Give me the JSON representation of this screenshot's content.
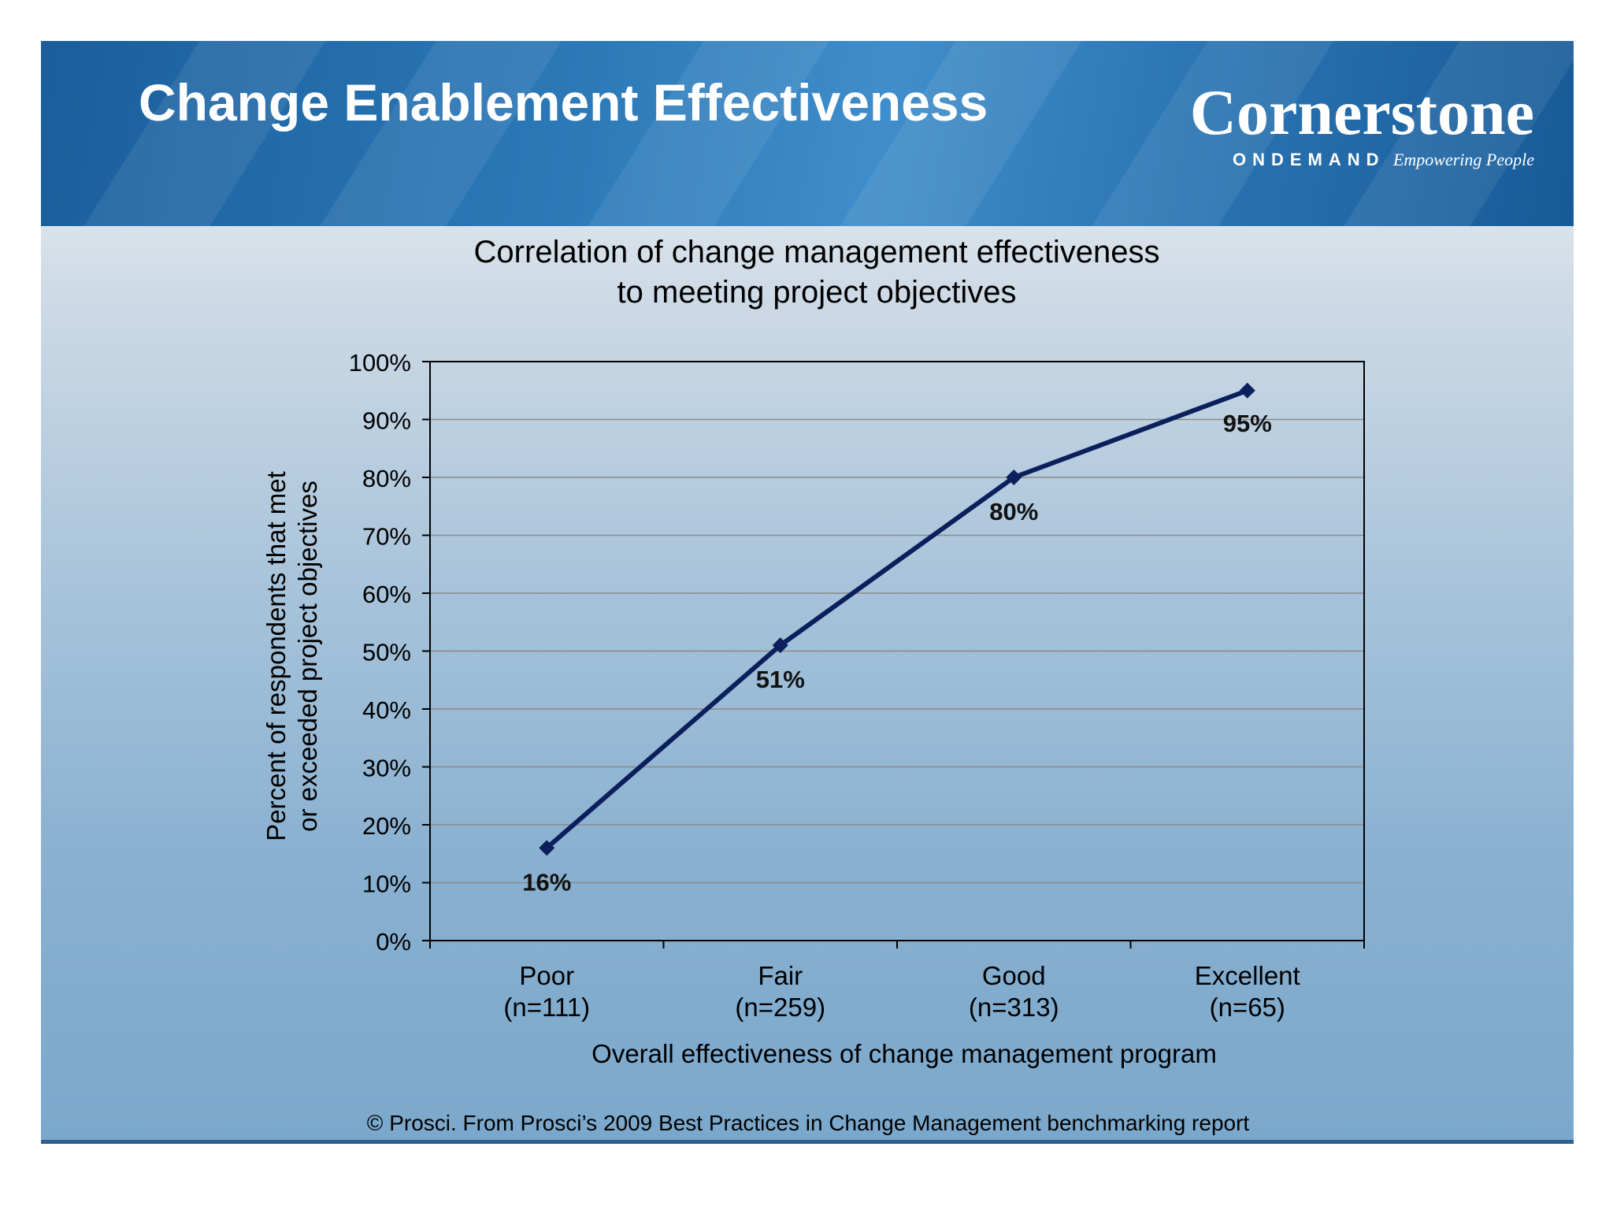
{
  "slide": {
    "title": "Change Enablement Effectiveness",
    "logo_name": "Cornerstone",
    "logo_ondemand": "ONDEMAND",
    "logo_tagline": "Empowering People",
    "footer": "© Prosci. From Prosci’s 2009 Best Practices in Change Management benchmarking report"
  },
  "colors": {
    "line": "#0b1f5c",
    "header": "#2c79b8",
    "grid": "#8a8a8a"
  },
  "chart_data": {
    "type": "line",
    "title_lines": [
      "Correlation of change management effectiveness",
      "to meeting project objectives"
    ],
    "categories": [
      [
        "Poor",
        "(n=111)"
      ],
      [
        "Fair",
        "(n=259)"
      ],
      [
        "Good",
        "(n=313)"
      ],
      [
        "Excellent",
        "(n=65)"
      ]
    ],
    "values": [
      16,
      51,
      80,
      95
    ],
    "value_labels": [
      "16%",
      "51%",
      "80%",
      "95%"
    ],
    "ylabel_lines": [
      "Percent of respondents that met",
      "or exceeded project objectives"
    ],
    "xlabel": "Overall effectiveness of change management  program",
    "ylim": [
      0,
      100
    ],
    "y_ticks": [
      "0%",
      "10%",
      "20%",
      "30%",
      "40%",
      "50%",
      "60%",
      "70%",
      "80%",
      "90%",
      "100%"
    ],
    "grid": true,
    "marker": "diamond"
  }
}
